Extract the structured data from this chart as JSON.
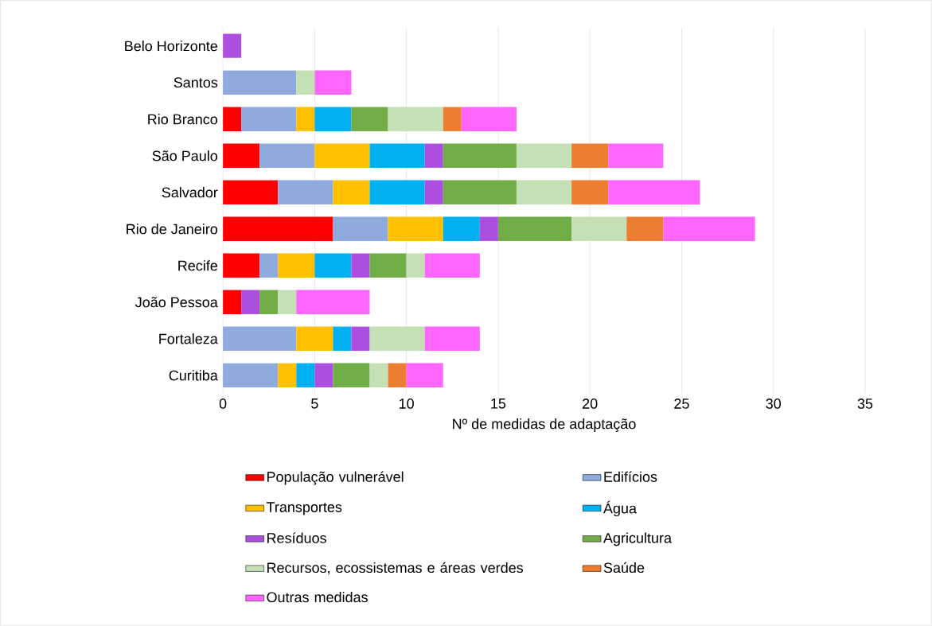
{
  "chart_data": {
    "type": "bar",
    "orientation": "horizontal",
    "stacked": true,
    "categories": [
      "Belo Horizonte",
      "Santos",
      "Rio Branco",
      "São Paulo",
      "Salvador",
      "Rio de Janeiro",
      "Recife",
      "João Pessoa",
      "Fortaleza",
      "Curitiba"
    ],
    "series": [
      {
        "name": "População vulnerável",
        "color": "#ff0000",
        "values": [
          null,
          null,
          1,
          2,
          3,
          6,
          2,
          1,
          null,
          null
        ]
      },
      {
        "name": "Edifícios",
        "color": "#8faadc",
        "values": [
          null,
          4,
          3,
          3,
          3,
          3,
          1,
          null,
          4,
          3
        ]
      },
      {
        "name": "Transportes",
        "color": "#ffc000",
        "values": [
          null,
          null,
          1,
          3,
          2,
          3,
          2,
          null,
          2,
          1
        ]
      },
      {
        "name": "Água",
        "color": "#00b0f0",
        "values": [
          null,
          null,
          2,
          3,
          3,
          2,
          2,
          null,
          1,
          1
        ]
      },
      {
        "name": "Resíduos",
        "color": "#ac4fe0",
        "values": [
          1,
          null,
          null,
          1,
          1,
          1,
          1,
          1,
          1,
          1
        ]
      },
      {
        "name": "Agricultura",
        "color": "#70ad47",
        "values": [
          null,
          null,
          2,
          4,
          4,
          4,
          2,
          1,
          null,
          2
        ]
      },
      {
        "name": "Recursos, ecossistemas e áreas verdes",
        "color": "#c5e0b4",
        "values": [
          null,
          1,
          3,
          3,
          3,
          3,
          1,
          1,
          3,
          1
        ]
      },
      {
        "name": "Saúde",
        "color": "#ed7d31",
        "values": [
          null,
          null,
          1,
          2,
          2,
          2,
          null,
          null,
          null,
          1
        ]
      },
      {
        "name": "Outras medidas",
        "color": "#ff66ff",
        "values": [
          null,
          2,
          3,
          3,
          5,
          5,
          3,
          4,
          3,
          2
        ]
      }
    ],
    "xlim": [
      0,
      35
    ],
    "xticks": [
      0,
      5,
      10,
      15,
      20,
      25,
      30,
      35
    ],
    "xlabel": "Nº de medidas de adaptação",
    "grid": "x",
    "legend": "bottom"
  }
}
